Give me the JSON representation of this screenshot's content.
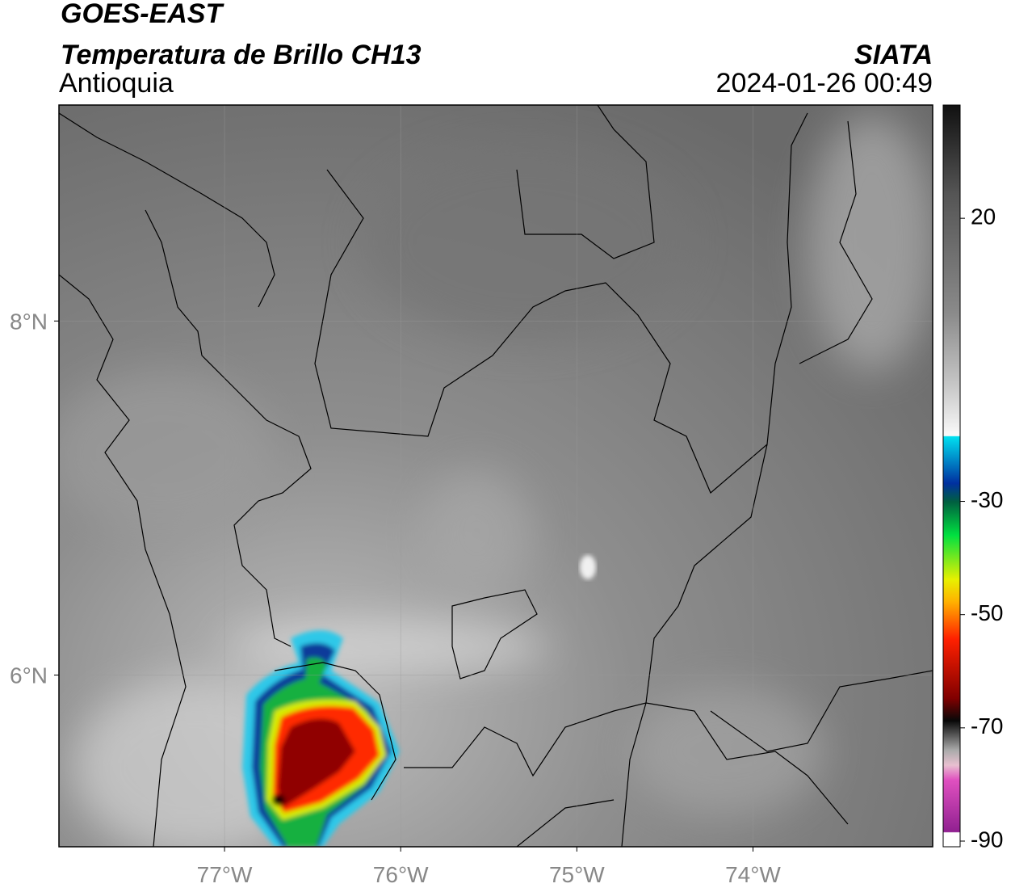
{
  "header": {
    "title": "GOES-EAST",
    "subtitle": "Temperatura de Brillo CH13",
    "region": "Antioquia",
    "source": "SIATA",
    "timestamp": "2024-01-26 00:49"
  },
  "map": {
    "xlim": [
      -77.94,
      -72.98
    ],
    "ylim": [
      5.03,
      9.22
    ],
    "xticks": [
      {
        "value": -77,
        "label": "77°W"
      },
      {
        "value": -76,
        "label": "76°W"
      },
      {
        "value": -75,
        "label": "75°W"
      },
      {
        "value": -74,
        "label": "74°W"
      }
    ],
    "yticks": [
      {
        "value": 8,
        "label": "8°N"
      },
      {
        "value": 6,
        "label": "6°N"
      }
    ],
    "grid": true
  },
  "colorbar": {
    "lim": [
      -91,
      40
    ],
    "ticks": [
      20,
      -30,
      -50,
      -70,
      -90
    ]
  }
}
